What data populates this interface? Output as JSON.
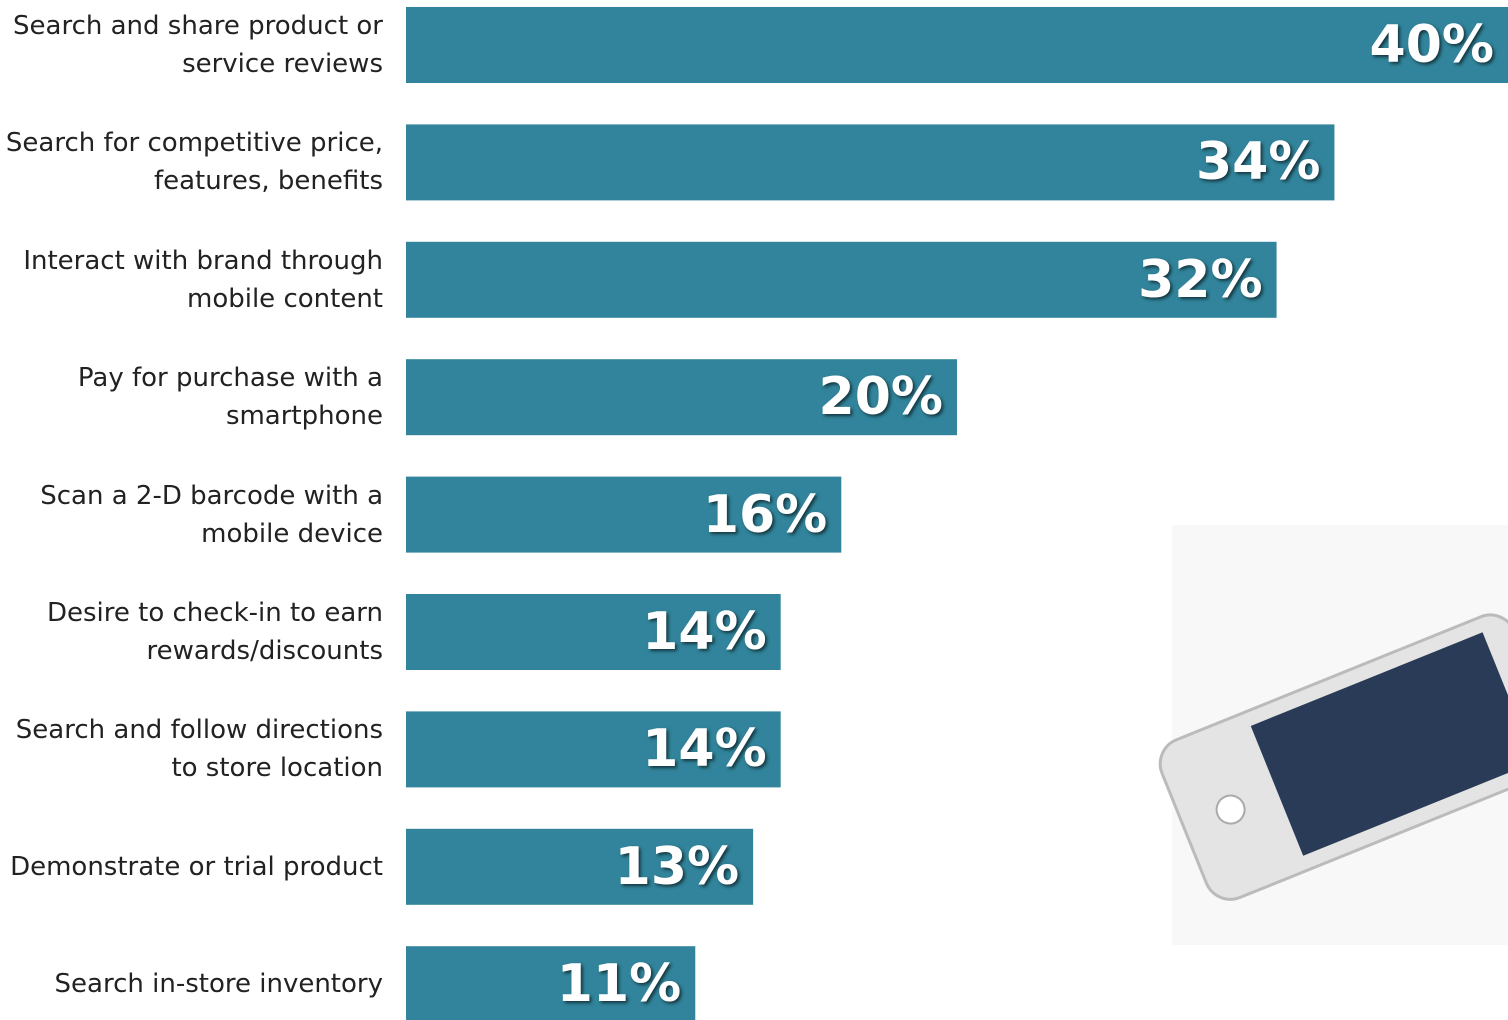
{
  "chart_data": {
    "type": "bar",
    "orientation": "horizontal",
    "color": "#31849b",
    "categories": [
      "Search and share product or\nservice reviews",
      "Search for competitive price,\nfeatures, benefits",
      "Interact with brand through\nmobile content",
      "Pay for purchase with a\nsmartphone",
      "Scan a 2-D barcode with a\nmobile device",
      "Desire to check-in to earn\nrewards/discounts",
      "Search and follow directions\nto store location",
      "Demonstrate or trial product",
      "Search in-store inventory"
    ],
    "values": [
      40,
      33.7,
      31.6,
      20,
      15.8,
      13.6,
      13.6,
      12.6,
      10.5
    ],
    "value_labels": [
      "40%",
      "34%",
      "32%",
      "20%",
      "16%",
      "14%",
      "14%",
      "13%",
      "11%"
    ]
  }
}
